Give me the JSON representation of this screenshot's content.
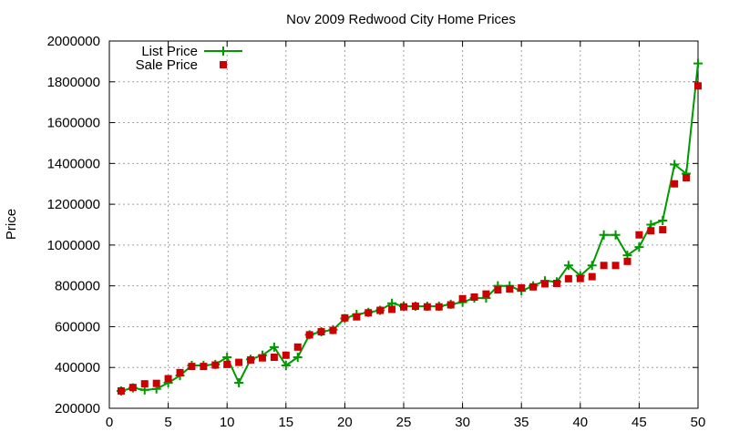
{
  "chart_data": {
    "type": "line",
    "title": "Nov 2009 Redwood City Home Prices",
    "xlabel": "",
    "ylabel": "Price",
    "xlim": [
      0,
      50
    ],
    "ylim": [
      200000,
      2000000
    ],
    "x_ticks": [
      "0",
      "5",
      "10",
      "15",
      "20",
      "25",
      "30",
      "35",
      "40",
      "45",
      "50"
    ],
    "y_ticks": [
      "200000",
      "400000",
      "600000",
      "800000",
      "1000000",
      "1200000",
      "1400000",
      "1600000",
      "1800000",
      "2000000"
    ],
    "grid": true,
    "legend_position": "top-left",
    "series": [
      {
        "name": "List Price",
        "style": "line-with-plus-markers",
        "color": "#009900",
        "x": [
          1,
          2,
          3,
          4,
          5,
          6,
          7,
          8,
          9,
          10,
          11,
          12,
          13,
          14,
          15,
          16,
          17,
          18,
          19,
          20,
          21,
          22,
          23,
          24,
          25,
          26,
          27,
          28,
          29,
          30,
          31,
          32,
          33,
          34,
          35,
          36,
          37,
          38,
          39,
          40,
          41,
          42,
          43,
          44,
          45,
          46,
          47,
          48,
          49,
          50
        ],
        "values": [
          285000,
          300000,
          290000,
          295000,
          325000,
          360000,
          410000,
          410000,
          415000,
          450000,
          325000,
          440000,
          460000,
          500000,
          410000,
          450000,
          560000,
          575000,
          585000,
          640000,
          660000,
          670000,
          680000,
          715000,
          700000,
          700000,
          700000,
          700000,
          710000,
          720000,
          740000,
          740000,
          800000,
          800000,
          775000,
          800000,
          825000,
          820000,
          900000,
          850000,
          900000,
          1050000,
          1050000,
          950000,
          990000,
          1100000,
          1120000,
          1395000,
          1350000,
          1890000
        ]
      },
      {
        "name": "Sale Price",
        "style": "square-markers",
        "color": "#cc0000",
        "x": [
          1,
          2,
          3,
          4,
          5,
          6,
          7,
          8,
          9,
          10,
          11,
          12,
          13,
          14,
          15,
          16,
          17,
          18,
          19,
          20,
          21,
          22,
          23,
          24,
          25,
          26,
          27,
          28,
          29,
          30,
          31,
          32,
          33,
          34,
          35,
          36,
          37,
          38,
          39,
          40,
          41,
          42,
          43,
          44,
          45,
          46,
          47,
          48,
          49,
          50
        ],
        "values": [
          285000,
          302000,
          320000,
          322000,
          345000,
          375000,
          405000,
          405000,
          412000,
          415000,
          425000,
          437000,
          447000,
          450000,
          460000,
          500000,
          560000,
          575000,
          582000,
          643000,
          648000,
          668000,
          680000,
          685000,
          697000,
          700000,
          697000,
          697000,
          707000,
          737000,
          745000,
          760000,
          780000,
          785000,
          790000,
          795000,
          810000,
          812000,
          835000,
          836000,
          845000,
          900000,
          900000,
          920000,
          1050000,
          1070000,
          1075000,
          1300000,
          1330000,
          1780000
        ]
      }
    ]
  }
}
